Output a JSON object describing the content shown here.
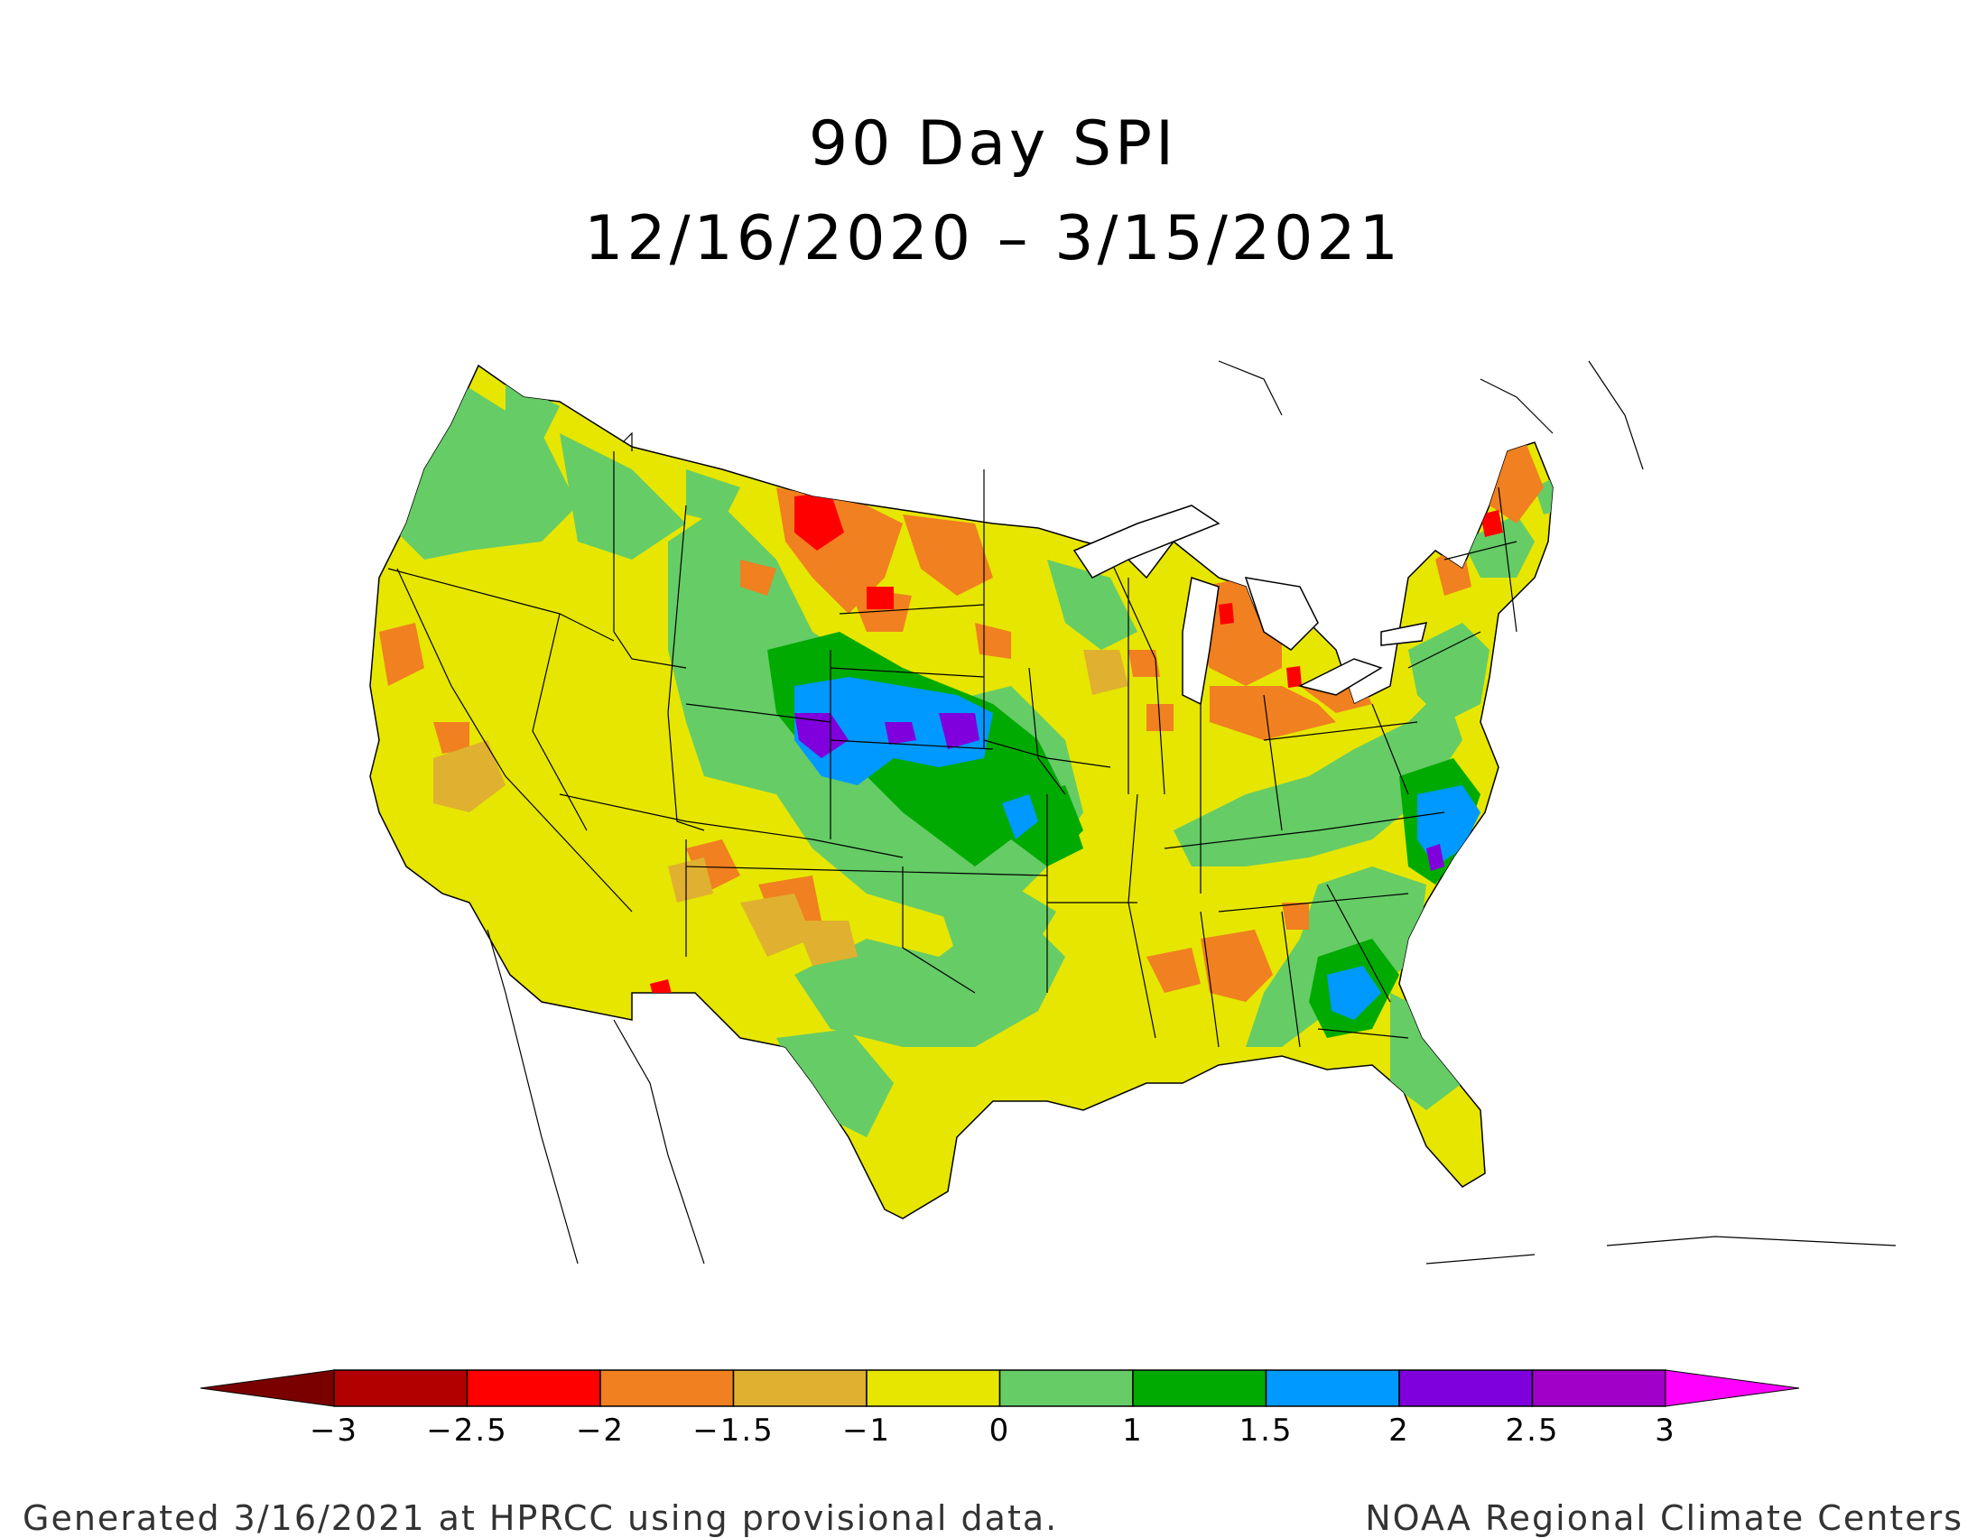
{
  "title": "90 Day SPI",
  "subtitle": "12/16/2020 – 3/15/2021",
  "footer_left": "Generated 3/16/2021 at HPRCC using provisional data.",
  "footer_right": "NOAA Regional Climate Centers",
  "legend": {
    "ticks": [
      "−3",
      "−2.5",
      "−2",
      "−1.5",
      "−1",
      "0",
      "1",
      "1.5",
      "2",
      "2.5",
      "3"
    ],
    "colors": {
      "below_min": "#7a0000",
      "bins": [
        "#b20000",
        "#ff0000",
        "#f08020",
        "#e0b030",
        "#e6e600",
        "#66cc66",
        "#00aa00",
        "#0099ff",
        "#7f00dd",
        "#a000c8"
      ],
      "above_max": "#ff00ff"
    }
  },
  "map": {
    "region": "Contiguous United States",
    "dominant_colors": {
      "near_normal_dry": "#e6e600",
      "wet": "#66cc66",
      "very_wet": "#00aa00",
      "dry": "#f08020",
      "extreme_dry": "#ff0000",
      "extreme_wet": "#0099ff",
      "exceptional_wet": "#7f00dd"
    }
  }
}
